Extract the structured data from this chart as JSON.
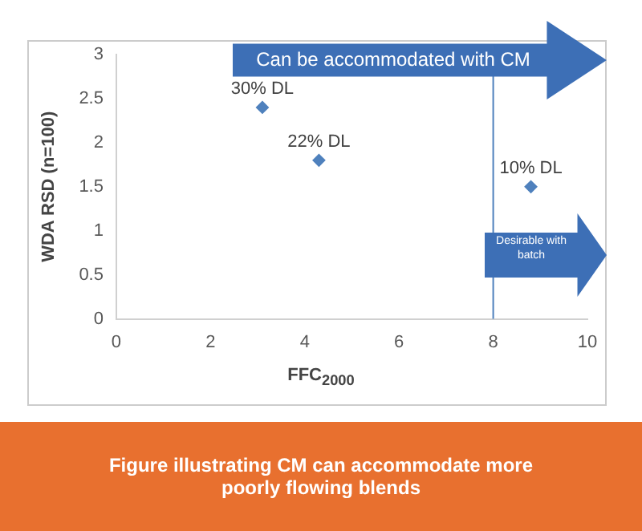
{
  "chart_data": {
    "type": "scatter",
    "xlabel": "FFC$_{2000}$",
    "ylabel": "WDA RSD (n=100)",
    "series": [
      {
        "x": [
          3.1,
          4.3,
          8.8
        ],
        "values": [
          2.4,
          1.8,
          1.5
        ],
        "color": "#4f81bd"
      }
    ],
    "xlim": [
      0,
      10
    ],
    "xticks": [
      0,
      2,
      4,
      6,
      8,
      10
    ],
    "ylim": [
      0,
      3
    ],
    "yticks": [
      0,
      0.5,
      1,
      1.5,
      2,
      2.5,
      3
    ],
    "marker": "diamond",
    "grid": false,
    "legend": false,
    "ref_lines": [
      {
        "axis": "x",
        "value": 8,
        "color": "#4f81bd"
      }
    ],
    "annotations": [
      {
        "text": "30% DL",
        "x": 3.1,
        "y": 2.4
      },
      {
        "text": "22% DL",
        "x": 4.3,
        "y": 1.8
      },
      {
        "text": "10% DL",
        "x": 8.8,
        "y": 1.5
      },
      "Can be accommodated with CM",
      "Desirable with batch",
      "Figure illustrating CM can accommodate more poorly flowing blends"
    ]
  }
}
